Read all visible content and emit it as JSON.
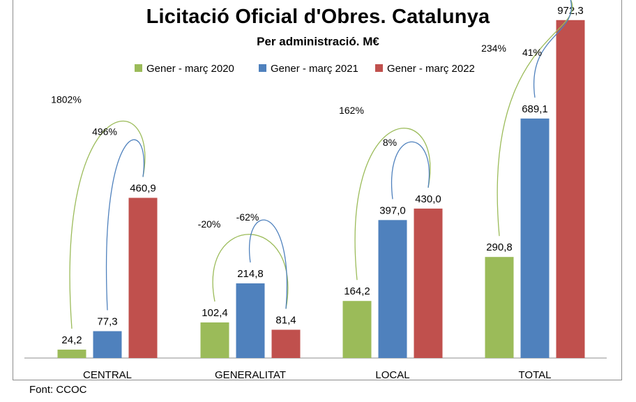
{
  "chart_data": {
    "type": "bar",
    "title": "Licitació Oficial d'Obres. Catalunya",
    "subtitle": "Per administració. M€",
    "source": "Font: CCOC",
    "categories": [
      "CENTRAL",
      "GENERALITAT",
      "LOCAL",
      "TOTAL"
    ],
    "series": [
      {
        "name": "Gener - març 2020",
        "color": "#9bbb59",
        "values": [
          24.2,
          102.4,
          164.2,
          290.8
        ],
        "labels": [
          "24,2",
          "102,4",
          "164,2",
          "290,8"
        ]
      },
      {
        "name": "Gener - març 2021",
        "color": "#4f81bd",
        "values": [
          77.3,
          214.8,
          397.0,
          689.1
        ],
        "labels": [
          "77,3",
          "214,8",
          "397,0",
          "689,1"
        ]
      },
      {
        "name": "Gener - març 2022",
        "color": "#c0504d",
        "values": [
          460.9,
          81.4,
          430.0,
          972.3
        ],
        "labels": [
          "460,9",
          "81,4",
          "430,0",
          "972,3"
        ]
      }
    ],
    "annotations": [
      {
        "category": "CENTRAL",
        "from_series": 0,
        "to_series": 2,
        "text": "1802%",
        "color": "#9bbb59"
      },
      {
        "category": "CENTRAL",
        "from_series": 1,
        "to_series": 2,
        "text": "496%",
        "color": "#4f81bd"
      },
      {
        "category": "GENERALITAT",
        "from_series": 0,
        "to_series": 2,
        "text": "-20%",
        "color": "#9bbb59"
      },
      {
        "category": "GENERALITAT",
        "from_series": 1,
        "to_series": 2,
        "text": "-62%",
        "color": "#4f81bd"
      },
      {
        "category": "LOCAL",
        "from_series": 0,
        "to_series": 2,
        "text": "162%",
        "color": "#9bbb59"
      },
      {
        "category": "LOCAL",
        "from_series": 1,
        "to_series": 2,
        "text": "8%",
        "color": "#4f81bd"
      },
      {
        "category": "TOTAL",
        "from_series": 0,
        "to_series": 2,
        "text": "234%",
        "color": "#9bbb59"
      },
      {
        "category": "TOTAL",
        "from_series": 1,
        "to_series": 2,
        "text": "41%",
        "color": "#4f81bd"
      }
    ],
    "ylim": [
      0,
      1000
    ],
    "grid": false,
    "legend_position": "top-center"
  }
}
